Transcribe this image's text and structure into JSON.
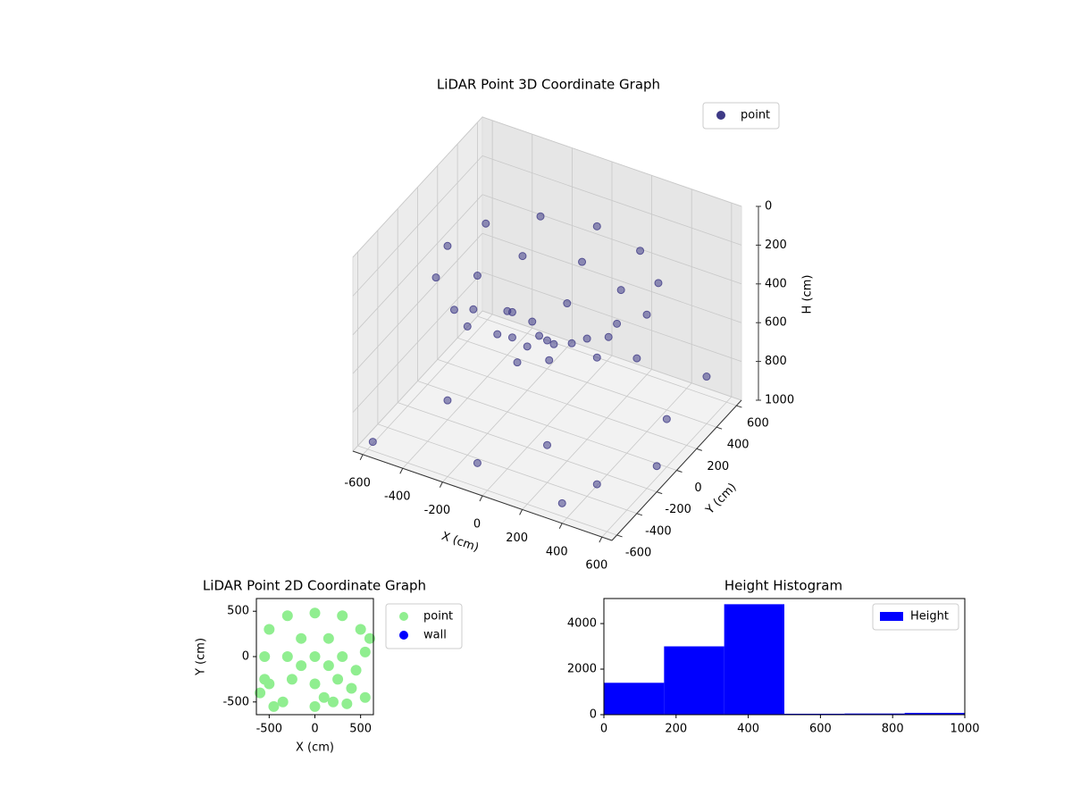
{
  "chart_data": [
    {
      "type": "scatter3d",
      "title": "LiDAR Point 3D Coordinate Graph",
      "xlabel": "X (cm)",
      "ylabel": "Y (cm)",
      "zlabel": "H (cm)",
      "xlim": [
        -650,
        650
      ],
      "ylim": [
        -650,
        650
      ],
      "zlim": [
        1000,
        0
      ],
      "xticks": [
        -600,
        -400,
        -200,
        0,
        200,
        400,
        600
      ],
      "yticks": [
        -600,
        -400,
        -200,
        0,
        200,
        400,
        600
      ],
      "zticks": [
        0,
        200,
        400,
        600,
        800,
        1000
      ],
      "grid": true,
      "legend": "upper right",
      "series": [
        {
          "name": "point",
          "color": "#3e3a86",
          "x": [
            500,
            433,
            250,
            0,
            -250,
            -433,
            -500,
            -433,
            -250,
            0,
            250,
            433,
            350,
            247,
            0,
            -247,
            -350,
            -247,
            0,
            247,
            200,
            0,
            -200,
            0,
            0,
            50,
            -60,
            -550,
            -400,
            -300,
            -100,
            150,
            350,
            500,
            600,
            -600,
            200,
            -450,
            450,
            -200,
            100,
            550
          ],
          "y": [
            0,
            250,
            433,
            500,
            433,
            250,
            0,
            -250,
            -433,
            -500,
            -433,
            -250,
            0,
            247,
            350,
            247,
            0,
            -247,
            -350,
            -247,
            0,
            200,
            0,
            -200,
            0,
            -80,
            40,
            300,
            -200,
            450,
            -500,
            -300,
            -550,
            200,
            -100,
            -550,
            500,
            550,
            -400,
            100,
            300,
            500
          ],
          "h": [
            250,
            250,
            250,
            250,
            250,
            250,
            250,
            250,
            250,
            250,
            250,
            250,
            350,
            350,
            350,
            350,
            350,
            350,
            350,
            350,
            480,
            480,
            480,
            480,
            560,
            600,
            580,
            850,
            900,
            820,
            950,
            880,
            970,
            900,
            940,
            990,
            860,
            880,
            920,
            800,
            780,
            830
          ]
        }
      ]
    },
    {
      "type": "scatter",
      "title": "LiDAR Point 2D Coordinate Graph",
      "xlabel": "X (cm)",
      "ylabel": "Y (cm)",
      "xlim": [
        -640,
        640
      ],
      "ylim": [
        -640,
        640
      ],
      "xticks": [
        -500,
        0,
        500
      ],
      "yticks": [
        -500,
        0,
        500
      ],
      "legend": "outside right",
      "series": [
        {
          "name": "point",
          "color": "#90ee90",
          "x": [
            -500,
            -300,
            0,
            300,
            500,
            600,
            -550,
            -300,
            0,
            300,
            550,
            -500,
            -250,
            0,
            250,
            400,
            -350,
            0,
            200,
            -150,
            150,
            -150,
            150,
            -600,
            -450,
            550,
            350,
            -550,
            100,
            450
          ],
          "y": [
            300,
            450,
            480,
            450,
            300,
            200,
            0,
            0,
            0,
            0,
            50,
            -300,
            -250,
            -300,
            -250,
            -350,
            -500,
            -550,
            -500,
            200,
            200,
            -100,
            -100,
            -400,
            -550,
            -450,
            -520,
            -250,
            -450,
            -150
          ]
        },
        {
          "name": "wall",
          "color": "#0000ff",
          "x": [],
          "y": []
        }
      ]
    },
    {
      "type": "histogram",
      "title": "Height Histogram",
      "bins": [
        0,
        166.7,
        333.3,
        500,
        666.7,
        833.3,
        1000
      ],
      "counts": [
        1400,
        3000,
        4850,
        40,
        50,
        80
      ],
      "xlim": [
        0,
        1000
      ],
      "ylim": [
        0,
        5100
      ],
      "xticks": [
        0,
        200,
        400,
        600,
        800,
        1000
      ],
      "yticks": [
        0,
        2000,
        4000
      ],
      "legend": "upper right",
      "series_name": "Height",
      "color": "#0000ff"
    }
  ]
}
